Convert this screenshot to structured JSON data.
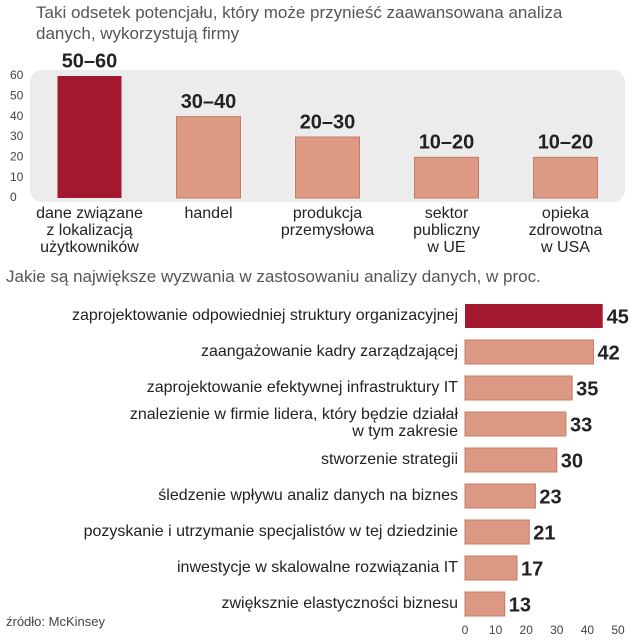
{
  "chart_data": [
    {
      "type": "bar",
      "title": "Taki odsetek potencjału, który może przynieść zaawansowana analiza danych, wykorzystują firmy",
      "categories": [
        "dane związane\nz lokalizacją\nużytkowników",
        "handel",
        "produkcja\nprzemysłowa",
        "sektor\npubliczny\nw UE",
        "opieka\nzdrowotna\nw USA"
      ],
      "values": [
        60,
        40,
        30,
        20,
        20
      ],
      "value_labels": [
        "50–60",
        "30–40",
        "20–30",
        "10–20",
        "10–20"
      ],
      "colors": [
        "#a3182f",
        "#dc9a84",
        "#dc9a84",
        "#dc9a84",
        "#dc9a84"
      ],
      "ylim": [
        0,
        60
      ],
      "yticks": [
        0,
        10,
        20,
        30,
        40,
        50,
        60
      ]
    },
    {
      "type": "barh",
      "title": "Jakie są największe wyzwania w zastosowaniu analizy danych, w proc.",
      "categories": [
        "zaprojektowanie odpowiedniej struktury organizacyjnej",
        "zaangażowanie kadry zarządzającej",
        "zaprojektowanie efektywnej infrastruktury IT",
        "znalezienie w firmie lidera, który będzie działał\nw tym zakresie",
        "stworzenie strategii",
        "śledzenie wpływu analiz danych na biznes",
        "pozyskanie i utrzymanie specjalistów w tej dziedzinie",
        "inwestycje w skalowalne rozwiązania IT",
        "zwiększnie elastyczności biznesu"
      ],
      "values": [
        45,
        42,
        35,
        33,
        30,
        23,
        21,
        17,
        13
      ],
      "colors": [
        "#a3182f",
        "#dc9a84",
        "#dc9a84",
        "#dc9a84",
        "#dc9a84",
        "#dc9a84",
        "#dc9a84",
        "#dc9a84",
        "#dc9a84"
      ],
      "xlim": [
        0,
        50
      ],
      "xticks": [
        0,
        10,
        20,
        30,
        40,
        50
      ],
      "source": "źródło: McKinsey"
    }
  ]
}
